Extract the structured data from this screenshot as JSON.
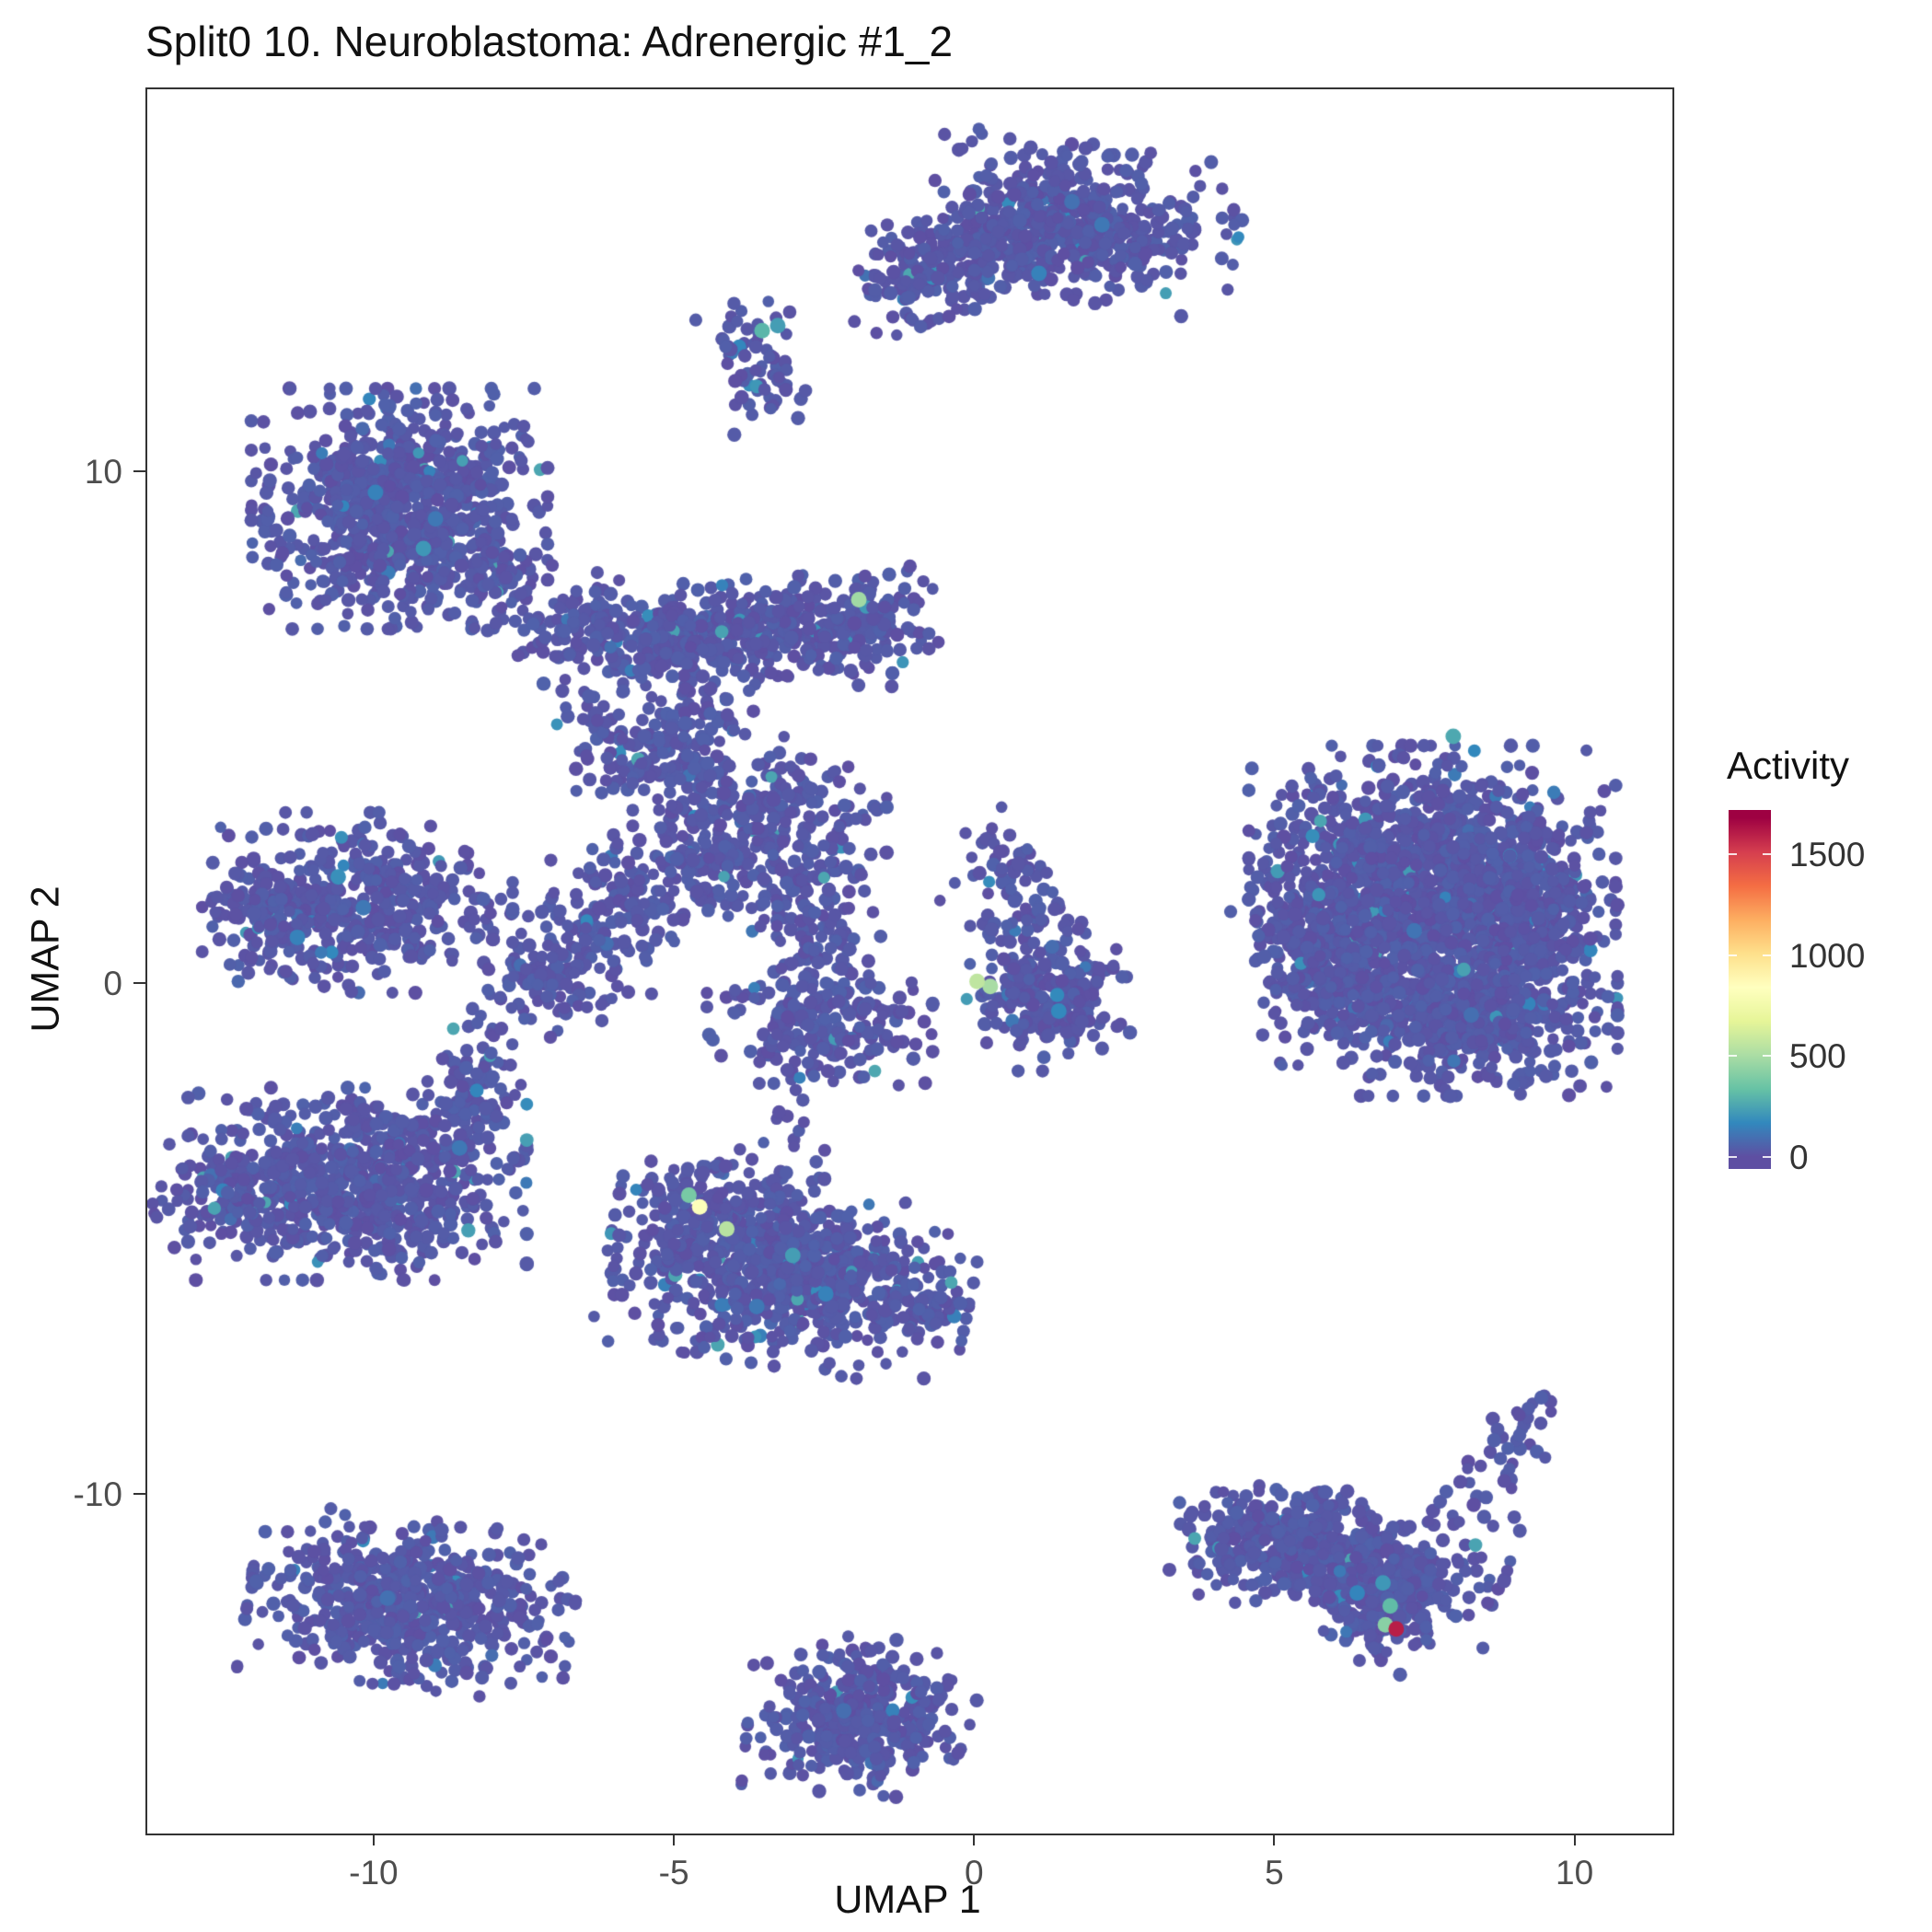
{
  "chart_data": {
    "type": "scatter",
    "title": "Split0 10. Neuroblastoma: Adrenergic #1_2",
    "xlabel": "UMAP 1",
    "ylabel": "UMAP 2",
    "xlim": [
      -13.8,
      11.6
    ],
    "ylim": [
      -16.6,
      17.5
    ],
    "x_ticks": [
      -10,
      -5,
      0,
      5,
      10
    ],
    "y_ticks": [
      10,
      0,
      -10
    ],
    "grid": "off",
    "panel_border_color": "#333333",
    "base_point_color": "#5E4FA2",
    "legend": {
      "title": "Activity",
      "position": "right",
      "ticks": [
        1500,
        1000,
        500,
        0
      ],
      "domain": [
        0,
        1680
      ],
      "bar_range": [
        -60,
        1720
      ],
      "colors": [
        "#5E4FA2",
        "#3288BD",
        "#66C2A5",
        "#ABDDA4",
        "#E6F598",
        "#FFFFBF",
        "#FEE08B",
        "#FDAE61",
        "#F46D43",
        "#D53E4F",
        "#9E0142"
      ]
    },
    "cluster_format": [
      "center_x",
      "center_y",
      "sd_x",
      "sd_y",
      "rotation_deg",
      "n_points"
    ],
    "clusters": [
      [
        0.2,
        14.3,
        0.9,
        0.55,
        20,
        260
      ],
      [
        1.8,
        14.9,
        1.1,
        0.65,
        -10,
        420
      ],
      [
        -1.2,
        13.9,
        0.5,
        0.5,
        0,
        60
      ],
      [
        -3.7,
        12.2,
        0.35,
        0.6,
        15,
        70
      ],
      [
        -9.6,
        9.3,
        1.05,
        1.0,
        0,
        850
      ],
      [
        -8.0,
        7.8,
        0.5,
        0.35,
        35,
        60
      ],
      [
        -6.6,
        7.0,
        0.5,
        0.4,
        30,
        90
      ],
      [
        -5.3,
        6.7,
        0.7,
        0.4,
        10,
        160
      ],
      [
        -3.4,
        6.9,
        1.0,
        0.45,
        5,
        260
      ],
      [
        -1.8,
        7.0,
        0.5,
        0.5,
        0,
        120
      ],
      [
        -4.6,
        5.0,
        0.4,
        0.8,
        10,
        110
      ],
      [
        -5.8,
        4.6,
        0.8,
        0.5,
        -35,
        120
      ],
      [
        -3.6,
        3.2,
        0.9,
        0.7,
        0,
        260
      ],
      [
        -6.0,
        1.6,
        0.6,
        0.9,
        -30,
        160
      ],
      [
        -7.2,
        0.2,
        0.5,
        0.5,
        -40,
        90
      ],
      [
        -2.9,
        1.3,
        0.5,
        0.8,
        15,
        110
      ],
      [
        -2.6,
        -0.7,
        0.8,
        0.6,
        0,
        230
      ],
      [
        -4.7,
        2.2,
        0.4,
        0.4,
        0,
        60
      ],
      [
        -10.3,
        1.6,
        1.1,
        0.75,
        0,
        420
      ],
      [
        -11.9,
        1.4,
        0.5,
        0.5,
        0,
        90
      ],
      [
        -10.3,
        -3.9,
        1.2,
        0.8,
        0,
        650
      ],
      [
        -12.3,
        -4.2,
        0.6,
        0.5,
        0,
        120
      ],
      [
        -8.6,
        -2.6,
        0.5,
        0.6,
        -30,
        100
      ],
      [
        -8.2,
        -1.2,
        0.25,
        0.5,
        -20,
        25
      ],
      [
        -3.1,
        -5.6,
        1.3,
        0.8,
        -10,
        820
      ],
      [
        -4.6,
        -4.4,
        0.5,
        0.5,
        0,
        120
      ],
      [
        -0.9,
        -6.3,
        0.4,
        0.3,
        0,
        50
      ],
      [
        -3.0,
        -2.9,
        0.4,
        0.7,
        10,
        18
      ],
      [
        1.2,
        -0.4,
        0.6,
        0.55,
        0,
        200
      ],
      [
        1.0,
        0.8,
        0.5,
        0.7,
        25,
        90
      ],
      [
        0.6,
        2.2,
        0.3,
        0.6,
        15,
        40
      ],
      [
        7.6,
        2.2,
        1.3,
        1.05,
        0,
        1200
      ],
      [
        8.1,
        -0.3,
        1.1,
        0.8,
        0,
        700
      ],
      [
        6.3,
        0.8,
        0.7,
        0.8,
        0,
        300
      ],
      [
        5.3,
        0.3,
        0.45,
        0.8,
        0,
        70
      ],
      [
        9.3,
        1.2,
        0.5,
        0.8,
        0,
        150
      ],
      [
        6.0,
        -11.2,
        1.2,
        0.55,
        -15,
        520
      ],
      [
        6.7,
        -12.1,
        0.5,
        0.45,
        -40,
        180
      ],
      [
        4.7,
        -10.8,
        0.5,
        0.4,
        0,
        80
      ],
      [
        8.5,
        -9.8,
        0.35,
        0.8,
        -25,
        45
      ],
      [
        9.4,
        -8.3,
        0.15,
        0.2,
        0,
        8
      ],
      [
        -9.4,
        -12.1,
        1.15,
        0.7,
        -8,
        600
      ],
      [
        -1.9,
        -14.3,
        0.8,
        0.65,
        -5,
        380
      ]
    ],
    "highlight_format": [
      "x",
      "y",
      "activity"
    ],
    "highlights": [
      [
        7.0,
        -12.6,
        1600
      ],
      [
        6.82,
        -12.52,
        420
      ],
      [
        6.9,
        -12.15,
        320
      ],
      [
        6.78,
        -11.7,
        210
      ],
      [
        6.35,
        -11.9,
        160
      ],
      [
        -4.6,
        -4.35,
        820
      ],
      [
        -4.78,
        -4.12,
        380
      ],
      [
        -4.15,
        -4.78,
        540
      ],
      [
        -3.05,
        -5.3,
        230
      ],
      [
        -2.5,
        -6.05,
        150
      ],
      [
        -3.65,
        -6.3,
        120
      ],
      [
        0.02,
        0.06,
        560
      ],
      [
        0.24,
        -0.04,
        500
      ],
      [
        1.38,
        -0.52,
        170
      ],
      [
        -1.95,
        7.52,
        480
      ],
      [
        7.95,
        4.85,
        260
      ],
      [
        7.3,
        1.05,
        110
      ],
      [
        8.25,
        -0.6,
        95
      ],
      [
        -3.56,
        12.78,
        300
      ],
      [
        -3.3,
        12.88,
        230
      ],
      [
        -9.2,
        8.52,
        210
      ],
      [
        -10.0,
        9.62,
        150
      ],
      [
        -9.0,
        9.1,
        120
      ],
      [
        -10.62,
        2.1,
        190
      ],
      [
        -11.3,
        0.92,
        150
      ],
      [
        -10.2,
        1.5,
        120
      ],
      [
        1.05,
        13.9,
        150
      ],
      [
        2.1,
        14.85,
        120
      ],
      [
        1.6,
        15.3,
        100
      ],
      [
        -8.6,
        -3.2,
        120
      ],
      [
        -9.8,
        -12.0,
        100
      ],
      [
        -2.2,
        -14.2,
        90
      ]
    ]
  }
}
